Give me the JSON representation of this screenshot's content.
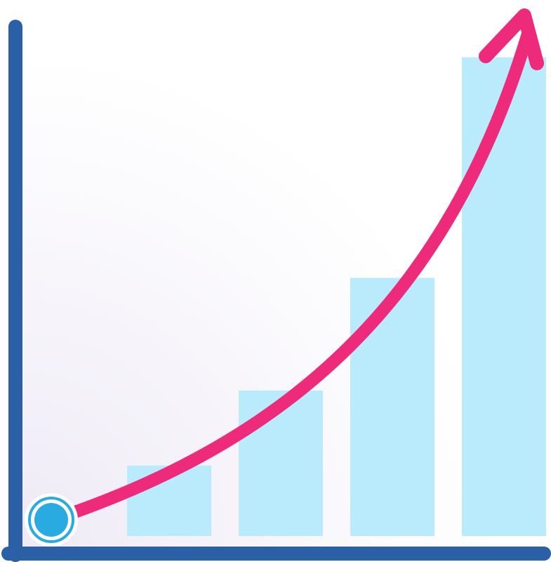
{
  "chart_data": {
    "type": "bar",
    "categories": [
      "",
      "",
      "",
      ""
    ],
    "values": [
      15,
      31,
      55,
      102
    ],
    "ylim": [
      0,
      113
    ],
    "grid": false,
    "legend": "none",
    "trend": {
      "type": "exponential-curve",
      "start_marker": "circle",
      "end_marker": "arrow-head"
    }
  },
  "colors": {
    "axis": "#2B5FA6",
    "bar": "#B9EBFC",
    "trend": "#EE2A7B",
    "marker_fill": "#29ABE2",
    "marker_ring": "#29ABE2",
    "background_tint": "#EEEAF6"
  }
}
